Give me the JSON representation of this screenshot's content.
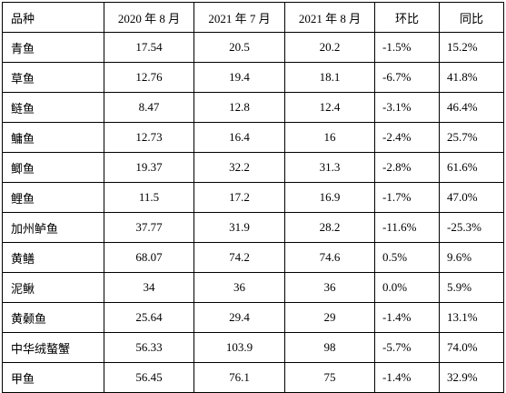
{
  "table": {
    "headers": [
      "品种",
      "2020 年 8 月",
      "2021 年 7 月",
      "2021 年 8 月",
      "环比",
      "同比"
    ],
    "rows": [
      [
        "青鱼",
        "17.54",
        "20.5",
        "20.2",
        "-1.5%",
        "15.2%"
      ],
      [
        "草鱼",
        "12.76",
        "19.4",
        "18.1",
        "-6.7%",
        "41.8%"
      ],
      [
        "鲢鱼",
        "8.47",
        "12.8",
        "12.4",
        "-3.1%",
        "46.4%"
      ],
      [
        "鳙鱼",
        "12.73",
        "16.4",
        "16",
        "-2.4%",
        "25.7%"
      ],
      [
        "鲫鱼",
        "19.37",
        "32.2",
        "31.3",
        "-2.8%",
        "61.6%"
      ],
      [
        "鲤鱼",
        "11.5",
        "17.2",
        "16.9",
        "-1.7%",
        "47.0%"
      ],
      [
        "加州鲈鱼",
        "37.77",
        "31.9",
        "28.2",
        "-11.6%",
        "-25.3%"
      ],
      [
        "黄鳝",
        "68.07",
        "74.2",
        "74.6",
        "0.5%",
        "9.6%"
      ],
      [
        "泥鳅",
        "34",
        "36",
        "36",
        "0.0%",
        "5.9%"
      ],
      [
        "黄颡鱼",
        "25.64",
        "29.4",
        "29",
        "-1.4%",
        "13.1%"
      ],
      [
        "中华绒螯蟹",
        "56.33",
        "103.9",
        "98",
        "-5.7%",
        "74.0%"
      ],
      [
        "甲鱼",
        "56.45",
        "76.1",
        "75",
        "-1.4%",
        "32.9%"
      ]
    ]
  }
}
